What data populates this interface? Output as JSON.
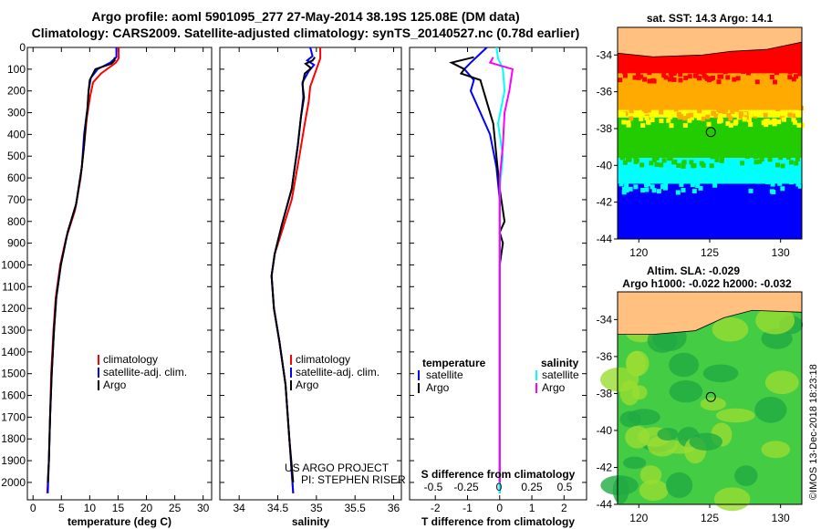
{
  "header": {
    "line1": "Argo profile: aoml 5901095_277 27-May-2014 38.19S 125.08E (DM data)",
    "line2": "Climatology: CARS2009. Satellite-adjusted climatology: synTS_20140527.nc (0.78d earlier)"
  },
  "stamp": "©IMOS 13-Dec-2018 18:23:18",
  "colors": {
    "climatology": "#ff0000",
    "satellite": "#0000ff",
    "argo": "#000000",
    "sat_salinity": "#00ffff",
    "argo_salinity": "#ff00ff"
  },
  "chart_data": [
    {
      "id": "temperature",
      "type": "line",
      "xlabel": "temperature (deg C)",
      "ylabel": "",
      "xlim": [
        -1,
        31.5
      ],
      "ylim": [
        2080,
        0
      ],
      "xticks": [
        0,
        5,
        10,
        15,
        20,
        25,
        30
      ],
      "yticks": [
        0,
        100,
        200,
        300,
        400,
        500,
        600,
        700,
        800,
        900,
        1000,
        1100,
        1200,
        1300,
        1400,
        1500,
        1600,
        1700,
        1800,
        1900,
        2000
      ],
      "legend": [
        "climatology",
        "satellite-adj. clim.",
        "Argo"
      ],
      "series": [
        {
          "name": "climatology",
          "color": "#ff0000",
          "points": [
            [
              15.1,
              0
            ],
            [
              15.1,
              50
            ],
            [
              14.6,
              70
            ],
            [
              12.0,
              120
            ],
            [
              10.6,
              160
            ],
            [
              10.1,
              220
            ],
            [
              9.5,
              320
            ],
            [
              9.0,
              450
            ],
            [
              8.4,
              600
            ],
            [
              7.4,
              750
            ],
            [
              5.8,
              880
            ],
            [
              4.8,
              1000
            ],
            [
              4.0,
              1150
            ],
            [
              3.6,
              1300
            ],
            [
              3.2,
              1500
            ],
            [
              3.0,
              1700
            ],
            [
              2.8,
              1900
            ],
            [
              2.5,
              2050
            ]
          ]
        },
        {
          "name": "satellite-adj. clim.",
          "color": "#0000ff",
          "points": [
            [
              14.7,
              0
            ],
            [
              14.7,
              45
            ],
            [
              13.6,
              70
            ],
            [
              11.4,
              100
            ],
            [
              10.2,
              140
            ],
            [
              9.8,
              200
            ],
            [
              9.6,
              280
            ],
            [
              9.4,
              320
            ],
            [
              9.0,
              400
            ],
            [
              8.6,
              550
            ],
            [
              7.6,
              720
            ],
            [
              6.1,
              850
            ],
            [
              4.9,
              1000
            ],
            [
              4.1,
              1150
            ],
            [
              3.7,
              1300
            ],
            [
              3.3,
              1500
            ],
            [
              3.0,
              1700
            ],
            [
              2.8,
              1900
            ],
            [
              2.6,
              2050
            ]
          ]
        },
        {
          "name": "Argo",
          "color": "#000000",
          "points": [
            [
              14.4,
              45
            ],
            [
              14.4,
              60
            ],
            [
              13.8,
              75
            ],
            [
              11.0,
              100
            ],
            [
              10.0,
              150
            ],
            [
              9.8,
              200
            ],
            [
              9.6,
              280
            ],
            [
              9.3,
              350
            ],
            [
              9.0,
              450
            ],
            [
              8.6,
              550
            ],
            [
              7.6,
              720
            ],
            [
              6.1,
              850
            ],
            [
              4.9,
              1000
            ],
            [
              4.1,
              1150
            ],
            [
              3.7,
              1300
            ],
            [
              3.3,
              1500
            ],
            [
              3.0,
              1700
            ],
            [
              2.8,
              1900
            ],
            [
              2.6,
              2000
            ]
          ]
        }
      ]
    },
    {
      "id": "salinity",
      "type": "line",
      "xlabel": "salinity",
      "ylabel": "",
      "xlim": [
        33.75,
        36.1
      ],
      "ylim": [
        2080,
        0
      ],
      "xticks": [
        34,
        34.5,
        35,
        35.5,
        36
      ],
      "xticklabels": [
        "34",
        "34.5",
        "35",
        "35.5",
        "36"
      ],
      "legend": [
        "climatology",
        "satellite-adj. clim.",
        "Argo"
      ],
      "annotations": [
        "US ARGO PROJECT",
        "PI: STEPHEN RISER"
      ],
      "series": [
        {
          "name": "climatology",
          "color": "#ff0000",
          "points": [
            [
              35.05,
              0
            ],
            [
              35.05,
              50
            ],
            [
              35.0,
              100
            ],
            [
              34.92,
              180
            ],
            [
              34.9,
              250
            ],
            [
              34.85,
              350
            ],
            [
              34.78,
              500
            ],
            [
              34.68,
              700
            ],
            [
              34.55,
              850
            ],
            [
              34.46,
              950
            ],
            [
              34.42,
              1050
            ],
            [
              34.45,
              1200
            ],
            [
              34.52,
              1350
            ],
            [
              34.6,
              1550
            ],
            [
              34.65,
              1800
            ],
            [
              34.7,
              2050
            ]
          ]
        },
        {
          "name": "satellite-adj. clim.",
          "color": "#0000ff",
          "points": [
            [
              34.92,
              0
            ],
            [
              34.95,
              40
            ],
            [
              34.88,
              60
            ],
            [
              34.97,
              80
            ],
            [
              34.9,
              110
            ],
            [
              34.82,
              160
            ],
            [
              34.83,
              230
            ],
            [
              34.8,
              320
            ],
            [
              34.76,
              450
            ],
            [
              34.68,
              650
            ],
            [
              34.55,
              820
            ],
            [
              34.46,
              950
            ],
            [
              34.42,
              1050
            ],
            [
              34.45,
              1200
            ],
            [
              34.52,
              1350
            ],
            [
              34.6,
              1550
            ],
            [
              34.65,
              1800
            ],
            [
              34.7,
              2050
            ]
          ]
        },
        {
          "name": "Argo",
          "color": "#000000",
          "points": [
            [
              34.98,
              45
            ],
            [
              34.95,
              60
            ],
            [
              34.86,
              75
            ],
            [
              34.93,
              95
            ],
            [
              34.85,
              120
            ],
            [
              34.82,
              170
            ],
            [
              34.84,
              230
            ],
            [
              34.8,
              320
            ],
            [
              34.76,
              450
            ],
            [
              34.68,
              650
            ],
            [
              34.55,
              820
            ],
            [
              34.46,
              950
            ],
            [
              34.42,
              1050
            ],
            [
              34.45,
              1200
            ],
            [
              34.52,
              1350
            ],
            [
              34.6,
              1550
            ],
            [
              34.65,
              1800
            ],
            [
              34.7,
              2000
            ]
          ]
        }
      ]
    },
    {
      "id": "difference",
      "type": "line",
      "xlabel": "T difference from climatology",
      "xlabel2": "S difference from climatology",
      "xlim": [
        -2.8,
        2.7
      ],
      "ylim": [
        2080,
        0
      ],
      "xticks": [
        -2,
        -1,
        0,
        1,
        2
      ],
      "xticklabels": [
        "-2",
        "-1",
        "0",
        "1",
        "2"
      ],
      "s_ticks": [
        -0.5,
        -0.25,
        0,
        0.25,
        0.5
      ],
      "s_ticklabels": [
        "-0.5",
        "-0.25",
        "0",
        "0.25",
        "0.5"
      ],
      "legend_left_title": "temperature",
      "legend_right_title": "salinity",
      "legend_left": [
        "satellite",
        "Argo"
      ],
      "legend_right": [
        "satellite",
        "Argo"
      ],
      "series": [
        {
          "name": "T satellite",
          "color": "#0000ff",
          "points": [
            [
              -0.4,
              0
            ],
            [
              -0.9,
              70
            ],
            [
              -1.1,
              100
            ],
            [
              -0.8,
              150
            ],
            [
              -0.9,
              200
            ],
            [
              -0.6,
              300
            ],
            [
              -0.3,
              400
            ],
            [
              -0.1,
              550
            ],
            [
              0.0,
              700
            ],
            [
              0.0,
              900
            ],
            [
              0.0,
              1100
            ],
            [
              0.0,
              2050
            ]
          ]
        },
        {
          "name": "T Argo",
          "color": "#000000",
          "points": [
            [
              -0.8,
              45
            ],
            [
              -1.5,
              70
            ],
            [
              -1.1,
              100
            ],
            [
              -1.2,
              120
            ],
            [
              -0.6,
              150
            ],
            [
              -0.5,
              200
            ],
            [
              -0.2,
              350
            ],
            [
              -0.1,
              500
            ],
            [
              0.0,
              650
            ],
            [
              0.15,
              800
            ],
            [
              0.0,
              850
            ],
            [
              0.1,
              900
            ],
            [
              0.0,
              1000
            ],
            [
              0.0,
              2000
            ]
          ]
        },
        {
          "name": "S satellite",
          "color": "#00ffff",
          "points": [
            [
              -0.1,
              0
            ],
            [
              -0.05,
              50
            ],
            [
              0.1,
              100
            ],
            [
              0.15,
              200
            ],
            [
              -0.05,
              350
            ],
            [
              0.1,
              500
            ],
            [
              0.0,
              650
            ],
            [
              0.0,
              900
            ],
            [
              0.0,
              2050
            ]
          ]
        },
        {
          "name": "S Argo",
          "color": "#ff00ff",
          "points": [
            [
              -0.2,
              45
            ],
            [
              -0.3,
              70
            ],
            [
              0.4,
              100
            ],
            [
              0.3,
              200
            ],
            [
              0.15,
              300
            ],
            [
              0.1,
              450
            ],
            [
              0.0,
              600
            ],
            [
              0.0,
              2000
            ]
          ]
        }
      ]
    },
    {
      "id": "sst-map",
      "type": "heatmap",
      "title": "sat. SST: 14.3 Argo: 14.1",
      "xlim": [
        118.5,
        131.5
      ],
      "ylim": [
        -44,
        -32.5
      ],
      "xticks": [
        120,
        125,
        130
      ],
      "yticks": [
        -34,
        -36,
        -38,
        -40,
        -42,
        -44
      ],
      "marker": {
        "lon": 125.08,
        "lat": -38.19
      },
      "bands": [
        {
          "color": "#ff0000",
          "lat_from": -32.5,
          "lat_to": -35.0
        },
        {
          "color": "#ffaa00",
          "lat_from": -35.0,
          "lat_to": -37.0
        },
        {
          "color": "#ffff00",
          "lat_from": -37.0,
          "lat_to": -37.4
        },
        {
          "color": "#22cc00",
          "lat_from": -37.4,
          "lat_to": -39.6
        },
        {
          "color": "#00ffff",
          "lat_from": -39.6,
          "lat_to": -41.0
        },
        {
          "color": "#0000ff",
          "lat_from": -41.0,
          "lat_to": -44.0
        }
      ]
    },
    {
      "id": "sla-map",
      "type": "heatmap",
      "title": "Altim. SLA: -0.029",
      "subtitle": "Argo h1000: -0.022 h2000: -0.032",
      "xlim": [
        118.5,
        131.5
      ],
      "ylim": [
        -44,
        -32.5
      ],
      "xticks": [
        120,
        125,
        130
      ],
      "yticks": [
        -34,
        -36,
        -38,
        -40,
        -42,
        -44
      ],
      "marker": {
        "lon": 125.08,
        "lat": -38.19
      },
      "land_color": "#ffc080",
      "ocean_color": "#44cc44"
    }
  ]
}
